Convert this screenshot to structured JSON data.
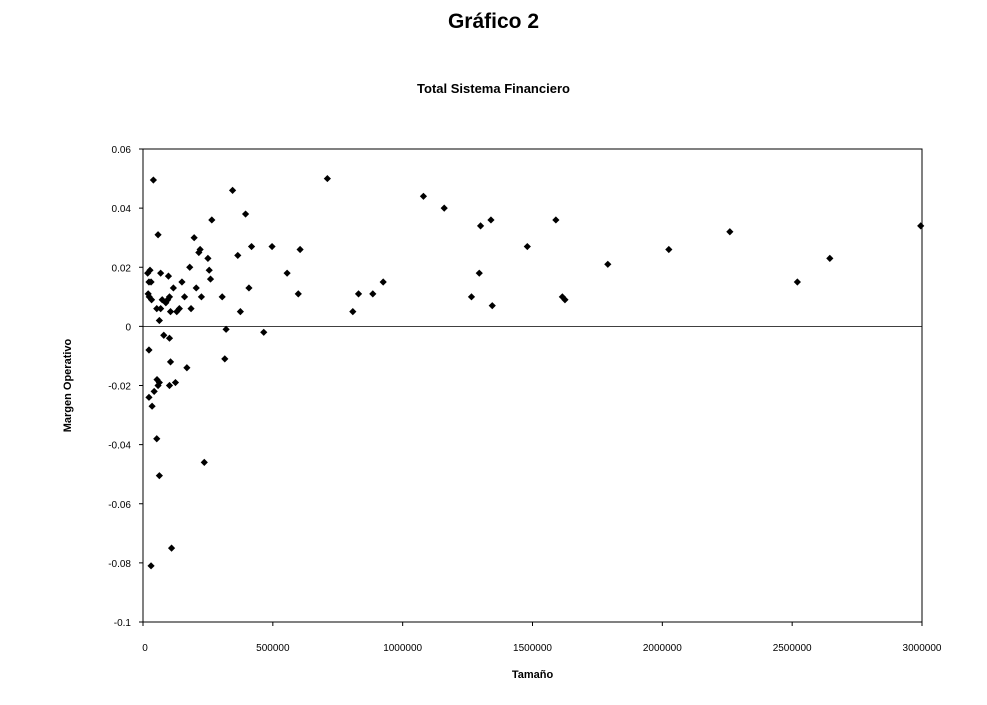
{
  "figure": {
    "title": "Gráfico 2"
  },
  "chart_data": {
    "type": "scatter",
    "title": "Total Sistema Financiero",
    "xlabel": "Tamaño",
    "ylabel": "Margen Operativo",
    "xlim": [
      0,
      3000000
    ],
    "ylim": [
      -0.1,
      0.06
    ],
    "x_ticks": [
      0,
      500000,
      1000000,
      1500000,
      2000000,
      2500000,
      3000000
    ],
    "x_tick_labels": [
      "0",
      "500000",
      "1000000",
      "1500000",
      "2000000",
      "2500000",
      "3000000"
    ],
    "y_ticks": [
      -0.1,
      -0.08,
      -0.06,
      -0.04,
      -0.02,
      0,
      0.02,
      0.04,
      0.06
    ],
    "y_tick_labels": [
      "-0.1",
      "-0.08",
      "-0.06",
      "-0.04",
      "-0.02",
      "0",
      "0.02",
      "0.04",
      "0.06"
    ],
    "zero_line": true,
    "grid": false,
    "marker": "diamond",
    "marker_color": "#000000",
    "points": [
      [
        18000,
        0.018
      ],
      [
        27000,
        0.019
      ],
      [
        23000,
        0.015
      ],
      [
        31000,
        0.015
      ],
      [
        20000,
        0.011
      ],
      [
        24000,
        0.01
      ],
      [
        33000,
        0.009
      ],
      [
        40000,
        0.0495
      ],
      [
        23000,
        -0.008
      ],
      [
        23000,
        -0.024
      ],
      [
        35000,
        -0.027
      ],
      [
        43000,
        -0.022
      ],
      [
        54000,
        -0.018
      ],
      [
        58000,
        -0.02
      ],
      [
        63000,
        -0.019
      ],
      [
        53000,
        -0.038
      ],
      [
        63000,
        -0.0505
      ],
      [
        31000,
        -0.081
      ],
      [
        58000,
        0.031
      ],
      [
        68000,
        0.018
      ],
      [
        53000,
        0.006
      ],
      [
        68000,
        0.006
      ],
      [
        63000,
        0.002
      ],
      [
        74000,
        0.009
      ],
      [
        88000,
        0.008
      ],
      [
        80000,
        -0.003
      ],
      [
        95000,
        0.009
      ],
      [
        98000,
        0.017
      ],
      [
        102000,
        0.01
      ],
      [
        106000,
        0.005
      ],
      [
        102000,
        -0.004
      ],
      [
        106000,
        -0.012
      ],
      [
        102000,
        -0.02
      ],
      [
        125000,
        -0.019
      ],
      [
        110000,
        -0.075
      ],
      [
        117000,
        0.013
      ],
      [
        130000,
        0.005
      ],
      [
        140000,
        0.006
      ],
      [
        150000,
        0.015
      ],
      [
        160000,
        0.01
      ],
      [
        169000,
        -0.014
      ],
      [
        180000,
        0.02
      ],
      [
        185000,
        0.006
      ],
      [
        197000,
        0.03
      ],
      [
        205000,
        0.013
      ],
      [
        215000,
        0.025
      ],
      [
        220000,
        0.026
      ],
      [
        225000,
        0.01
      ],
      [
        236000,
        -0.046
      ],
      [
        250000,
        0.023
      ],
      [
        255000,
        0.019
      ],
      [
        260000,
        0.016
      ],
      [
        265000,
        0.036
      ],
      [
        305000,
        0.01
      ],
      [
        315000,
        -0.011
      ],
      [
        320000,
        -0.001
      ],
      [
        345000,
        0.046
      ],
      [
        365000,
        0.024
      ],
      [
        375000,
        0.005
      ],
      [
        395000,
        0.038
      ],
      [
        408000,
        0.013
      ],
      [
        418000,
        0.027
      ],
      [
        465000,
        -0.002
      ],
      [
        497000,
        0.027
      ],
      [
        555000,
        0.018
      ],
      [
        598000,
        0.011
      ],
      [
        605000,
        0.026
      ],
      [
        710000,
        0.05
      ],
      [
        808000,
        0.005
      ],
      [
        830000,
        0.011
      ],
      [
        885000,
        0.011
      ],
      [
        925000,
        0.015
      ],
      [
        1080000,
        0.044
      ],
      [
        1160000,
        0.04
      ],
      [
        1265000,
        0.01
      ],
      [
        1295000,
        0.018
      ],
      [
        1300000,
        0.034
      ],
      [
        1340000,
        0.036
      ],
      [
        1345000,
        0.007
      ],
      [
        1480000,
        0.027
      ],
      [
        1590000,
        0.036
      ],
      [
        1615000,
        0.01
      ],
      [
        1625000,
        0.009
      ],
      [
        1790000,
        0.021
      ],
      [
        2025000,
        0.026
      ],
      [
        2260000,
        0.032
      ],
      [
        2520000,
        0.015
      ],
      [
        2645000,
        0.023
      ],
      [
        2995000,
        0.034
      ]
    ]
  }
}
